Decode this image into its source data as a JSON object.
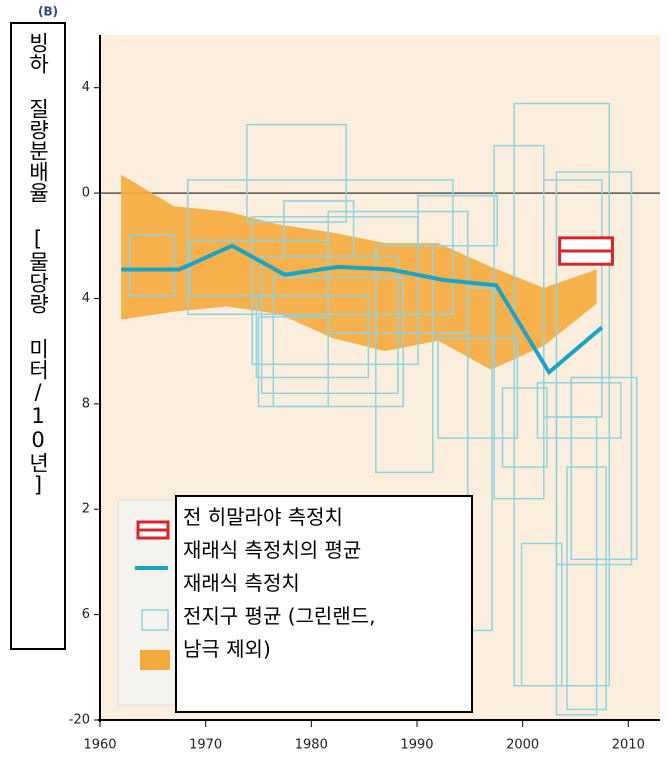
{
  "chart_data": {
    "type": "line",
    "panel_label": "(B)",
    "y_label": "빙하 질량분배율 [물당량 미터/10년]",
    "xlim": [
      1960,
      2013
    ],
    "xticks": [
      1960,
      1970,
      1980,
      1990,
      2000,
      2010
    ],
    "ylim": [
      -20,
      6
    ],
    "yticks": [
      4,
      0,
      {
        "value": -4,
        "label": "4"
      },
      {
        "value": -8,
        "label": "8"
      },
      {
        "value": -12,
        "label": "2"
      },
      {
        "value": -16,
        "label": "6"
      },
      -20
    ],
    "zero_line": true,
    "series": [
      {
        "name": "전 히말라야 측정치",
        "type": "box",
        "color": "#d9252a",
        "x_range": [
          2003.5,
          2008.5
        ],
        "value": -2.2,
        "range": [
          -1.7,
          -2.7
        ]
      },
      {
        "name": "재래식 측정치의 평균",
        "type": "line",
        "color": "#1ba3c6",
        "x": [
          1962,
          1967.5,
          1972.5,
          1977.5,
          1982.5,
          1987.5,
          1992.5,
          1997.5,
          2002.5,
          2007.5
        ],
        "values": [
          -2.9,
          -2.9,
          -2.0,
          -3.1,
          -2.8,
          -2.9,
          -3.3,
          -3.5,
          -6.8,
          -5.1
        ]
      },
      {
        "name": "재래식 측정치",
        "type": "boxes",
        "color": "#8fd3e0",
        "boxes": [
          {
            "x": [
              1968.3,
              1993.4
            ],
            "y": [
              0.5,
              -4.6
            ]
          },
          {
            "x": [
              1973.9,
              1983.3
            ],
            "y": [
              2.6,
              -1.1
            ]
          },
          {
            "x": [
              1974.4,
              1990.1
            ],
            "y": [
              -0.9,
              -6.5
            ]
          },
          {
            "x": [
              1975.3,
              1988.2
            ],
            "y": [
              -2.4,
              -7.6
            ]
          },
          {
            "x": [
              1976.4,
              1988.7
            ],
            "y": [
              -3.2,
              -8.1
            ]
          },
          {
            "x": [
              1986.1,
              1991.5
            ],
            "y": [
              -2.0,
              -10.6
            ]
          },
          {
            "x": [
              1981.6,
              1994.8
            ],
            "y": [
              -0.7,
              -5.3
            ]
          },
          {
            "x": [
              1999.2,
              2008.2
            ],
            "y": [
              3.4,
              -18.7
            ]
          },
          {
            "x": [
              1997.3,
              2002.0
            ],
            "y": [
              1.8,
              -11.6
            ]
          },
          {
            "x": [
              2002.0,
              2007.5
            ],
            "y": [
              0.5,
              -8.5
            ]
          },
          {
            "x": [
              2003.2,
              2010.3
            ],
            "y": [
              0.8,
              -14.1
            ]
          },
          {
            "x": [
              1999.9,
              2003.7
            ],
            "y": [
              -13.3,
              -18.7
            ]
          },
          {
            "x": [
              2003.2,
              2007.0
            ],
            "y": [
              -8.5,
              -19.8
            ]
          },
          {
            "x": [
              2001.4,
              2009.3
            ],
            "y": [
              -7.2,
              -9.3
            ]
          },
          {
            "x": [
              1994.8,
              1997.1
            ],
            "y": [
              -3.6,
              -16.6
            ]
          },
          {
            "x": [
              1998.1,
              2002.3
            ],
            "y": [
              -7.4,
              -10.4
            ]
          },
          {
            "x": [
              1974.8,
              1985.4
            ],
            "y": [
              -3.9,
              -7.0
            ]
          },
          {
            "x": [
              1968.5,
              1981.6
            ],
            "y": [
              -1.8,
              -3.9
            ]
          },
          {
            "x": [
              1962.8,
              1967.0
            ],
            "y": [
              -1.6,
              -3.9
            ]
          },
          {
            "x": [
              1977.4,
              1984.0
            ],
            "y": [
              -0.3,
              -2.4
            ]
          },
          {
            "x": [
              1990.1,
              1997.6
            ],
            "y": [
              -0.1,
              -2.0
            ]
          },
          {
            "x": [
              1992.0,
              1999.5
            ],
            "y": [
              -5.5,
              -9.3
            ]
          },
          {
            "x": [
              2004.6,
              2010.8
            ],
            "y": [
              -7.0,
              -13.9
            ]
          },
          {
            "x": [
              2004.2,
              2007.9
            ],
            "y": [
              -10.4,
              -19.6
            ]
          },
          {
            "x": [
              1975.0,
              1981.6
            ],
            "y": [
              -4.7,
              -8.1
            ]
          }
        ]
      },
      {
        "name": "전지구 평균 (그린랜드,\n남극 제외)",
        "type": "band",
        "color": "#f5a93c",
        "x": [
          1962,
          1967,
          1972,
          1977,
          1982,
          1987,
          1992,
          1997,
          2002,
          2007
        ],
        "upper": [
          0.7,
          -0.5,
          -0.7,
          -1.2,
          -1.5,
          -1.9,
          -1.9,
          -2.8,
          -3.6,
          -2.9
        ],
        "lower": [
          -4.8,
          -4.5,
          -4.3,
          -4.6,
          -5.5,
          -6.0,
          -5.6,
          -6.7,
          -5.8,
          -4.2
        ]
      }
    ]
  }
}
